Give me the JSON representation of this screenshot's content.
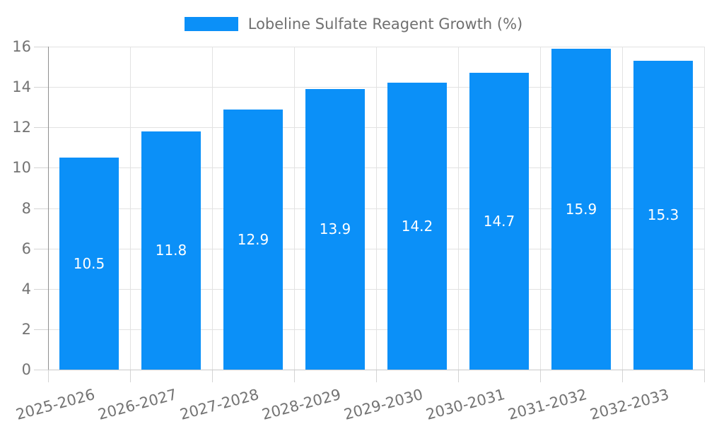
{
  "legend": {
    "label": "Lobeline Sulfate Reagent Growth (%)"
  },
  "colors": {
    "bar": "#0b90f8",
    "background": "#ffffff",
    "grid_line": "#e2e2e2",
    "tick": "#d4d4d4",
    "y_spine": "#8f8f8f",
    "x_axis_line": "#c9c9c9",
    "axis_label": "#737373",
    "value_label": "#ffffff",
    "legend_text": "#707070"
  },
  "chart_data": {
    "type": "bar",
    "title": "Lobeline Sulfate Reagent Growth (%)",
    "categories": [
      "2025-2026",
      "2026-2027",
      "2027-2028",
      "2028-2029",
      "2029-2030",
      "2030-2031",
      "2031-2032",
      "2032-2033"
    ],
    "values": [
      10.5,
      11.8,
      12.9,
      13.9,
      14.2,
      14.7,
      15.9,
      15.3
    ],
    "value_labels": [
      "10.5",
      "11.8",
      "12.9",
      "13.9",
      "14.2",
      "14.7",
      "15.9",
      "15.3"
    ],
    "xlabel": "",
    "ylabel": "",
    "ylim": [
      0,
      16
    ],
    "yticks": [
      0,
      2,
      4,
      6,
      8,
      10,
      12,
      14,
      16
    ],
    "grid": "on",
    "legend_position": "top-center",
    "bar_label_position": "inside-center",
    "x_label_rotation_deg": -15
  }
}
